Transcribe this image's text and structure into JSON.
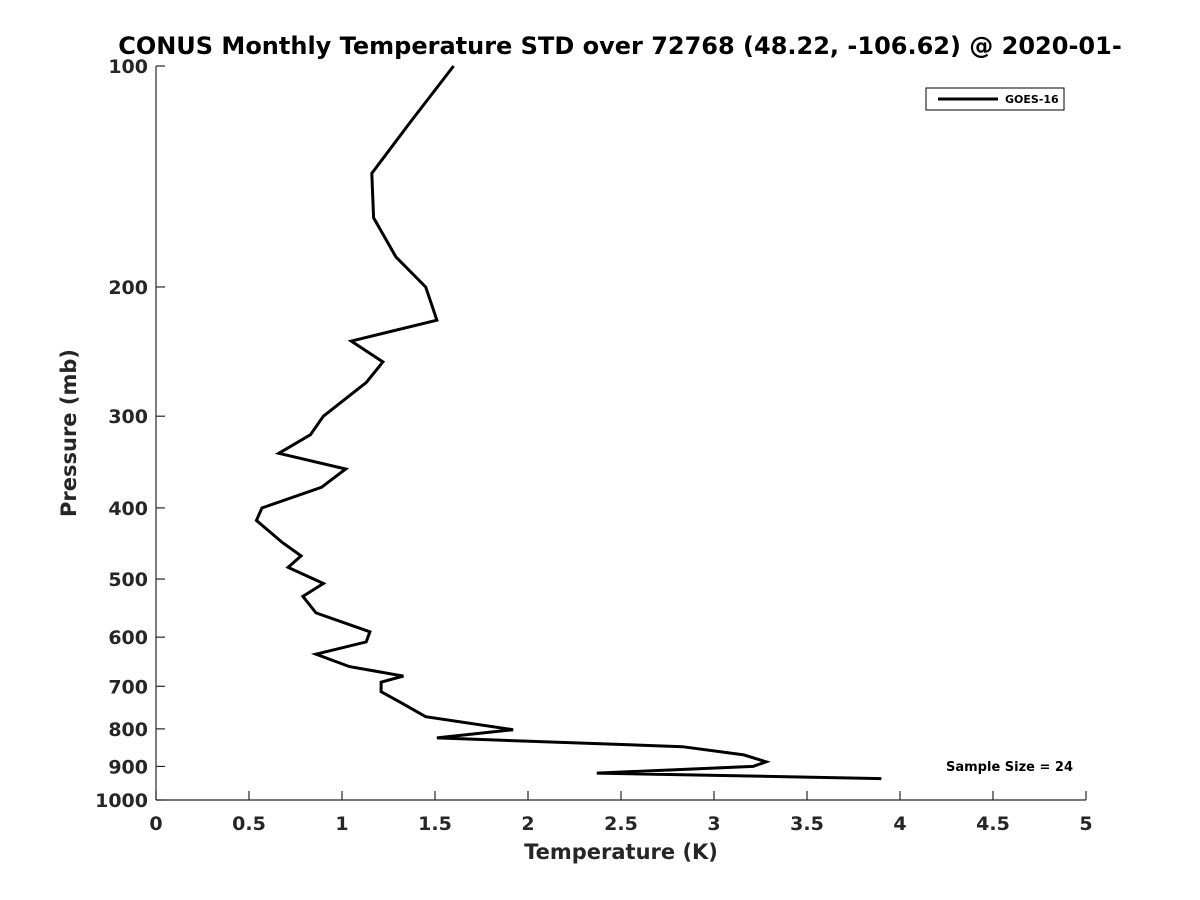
{
  "chart_data": {
    "type": "line",
    "title": "CONUS Monthly Temperature STD over 72768 (48.22, -106.62) @ 2020-01-",
    "xlabel": "Temperature (K)",
    "ylabel": "Pressure (mb)",
    "xlim": [
      0,
      5
    ],
    "ylim": [
      100,
      1000
    ],
    "y_scale": "log",
    "y_reversed": true,
    "x_ticks": [
      "0",
      "0.5",
      "1",
      "1.5",
      "2",
      "2.5",
      "3",
      "3.5",
      "4",
      "4.5",
      "5"
    ],
    "y_ticks": [
      "100",
      "200",
      "300",
      "400",
      "500",
      "600",
      "700",
      "800",
      "900",
      "1000"
    ],
    "grid": false,
    "legend_position": "top-right",
    "annotation": "Sample Size = 24",
    "series": [
      {
        "name": "GOES-16",
        "color": "#000000",
        "points": [
          [
            1.6,
            100
          ],
          [
            1.37,
            119
          ],
          [
            1.16,
            140
          ],
          [
            1.17,
            161
          ],
          [
            1.29,
            182
          ],
          [
            1.45,
            200
          ],
          [
            1.51,
            222
          ],
          [
            1.05,
            237
          ],
          [
            1.22,
            253
          ],
          [
            1.13,
            270
          ],
          [
            0.9,
            300
          ],
          [
            0.83,
            318
          ],
          [
            0.66,
            337
          ],
          [
            1.02,
            354
          ],
          [
            0.89,
            375
          ],
          [
            0.57,
            400
          ],
          [
            0.54,
            416
          ],
          [
            0.68,
            446
          ],
          [
            0.78,
            465
          ],
          [
            0.71,
            482
          ],
          [
            0.9,
            507
          ],
          [
            0.79,
            528
          ],
          [
            0.86,
            556
          ],
          [
            1.15,
            590
          ],
          [
            1.13,
            609
          ],
          [
            0.86,
            633
          ],
          [
            1.04,
            658
          ],
          [
            1.33,
            678
          ],
          [
            1.21,
            691
          ],
          [
            1.21,
            712
          ],
          [
            1.31,
            735
          ],
          [
            1.45,
            770
          ],
          [
            1.92,
            802
          ],
          [
            1.51,
            823
          ],
          [
            2.83,
            846
          ],
          [
            3.16,
            868
          ],
          [
            3.28,
            887
          ],
          [
            3.21,
            900
          ],
          [
            2.37,
            919
          ],
          [
            3.9,
            935
          ]
        ]
      }
    ]
  }
}
